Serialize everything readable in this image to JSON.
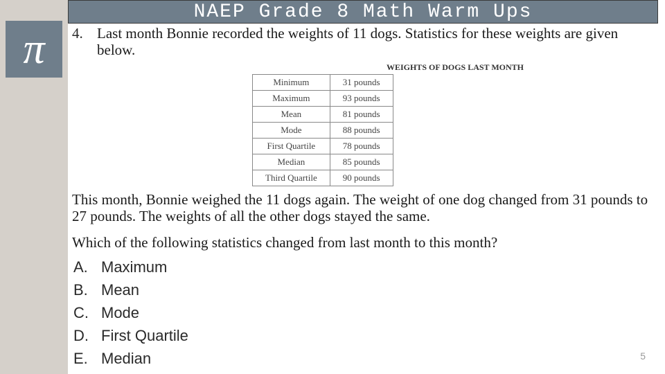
{
  "sidebar": {
    "pi_symbol": "π"
  },
  "header": {
    "title": "NAEP Grade 8 Math Warm Ups"
  },
  "question": {
    "number": "4.",
    "intro": "Last month Bonnie recorded the weights of 11 dogs.  Statistics for these weights are given below.",
    "followup": "This month, Bonnie weighed the 11 dogs again.  The weight of one dog changed from 31 pounds to 27 pounds.  The weights of all the other dogs stayed the same.",
    "prompt": "Which of the following statistics changed from last month to this month?"
  },
  "table": {
    "title": "WEIGHTS OF DOGS LAST MONTH",
    "rows": [
      {
        "label": "Minimum",
        "value": "31 pounds"
      },
      {
        "label": "Maximum",
        "value": "93 pounds"
      },
      {
        "label": "Mean",
        "value": "81 pounds"
      },
      {
        "label": "Mode",
        "value": "88 pounds"
      },
      {
        "label": "First Quartile",
        "value": "78 pounds"
      },
      {
        "label": "Median",
        "value": "85 pounds"
      },
      {
        "label": "Third Quartile",
        "value": "90 pounds"
      }
    ]
  },
  "choices": [
    {
      "letter": "A.",
      "text": "Maximum"
    },
    {
      "letter": "B.",
      "text": "Mean"
    },
    {
      "letter": "C.",
      "text": "Mode"
    },
    {
      "letter": "D.",
      "text": "First Quartile"
    },
    {
      "letter": "E.",
      "text": "Median"
    }
  ],
  "page_number": "5",
  "colors": {
    "sidebar_bg": "#d5d0ca",
    "accent": "#6f7e8b",
    "text": "#1a1a1a",
    "page_num": "#9a9a9a",
    "table_border": "#888888"
  }
}
